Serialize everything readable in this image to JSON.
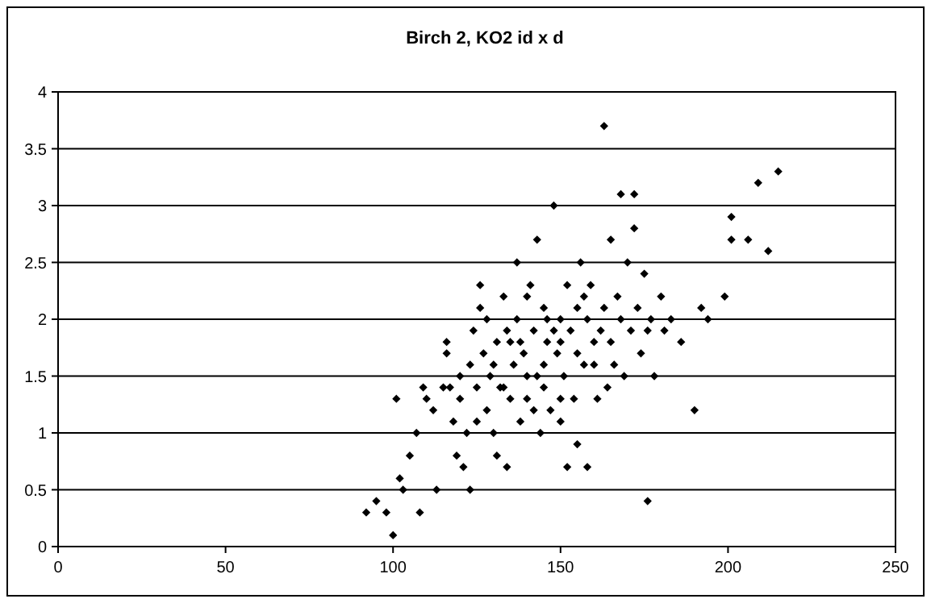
{
  "chart_data": {
    "type": "scatter",
    "title": "Birch 2, KO2 id x d",
    "xlim": [
      0,
      250
    ],
    "xticks": [
      0,
      50,
      100,
      150,
      200,
      250
    ],
    "ylim": [
      0,
      4
    ],
    "yticks": [
      0,
      0.5,
      1,
      1.5,
      2,
      2.5,
      3,
      3.5,
      4
    ],
    "grid": "y",
    "marker": "diamond",
    "series": [
      {
        "color": "#000000",
        "x": [
          92,
          95,
          98,
          100,
          102,
          103,
          105,
          107,
          108,
          110,
          101,
          109,
          112,
          113,
          115,
          116,
          116,
          117,
          118,
          119,
          120,
          121,
          122,
          123,
          123,
          124,
          125,
          126,
          126,
          127,
          128,
          128,
          129,
          130,
          131,
          131,
          132,
          133,
          134,
          134,
          135,
          136,
          137,
          137,
          138,
          139,
          140,
          140,
          141,
          142,
          143,
          143,
          144,
          145,
          145,
          146,
          147,
          148,
          148,
          149,
          150,
          150,
          151,
          152,
          152,
          153,
          154,
          155,
          155,
          156,
          157,
          157,
          158,
          158,
          159,
          160,
          161,
          162,
          163,
          163,
          164,
          165,
          165,
          166,
          167,
          168,
          168,
          169,
          170,
          171,
          172,
          172,
          173,
          174,
          175,
          176,
          176,
          177,
          178,
          180,
          181,
          183,
          186,
          190,
          192,
          194,
          199,
          201,
          201,
          206,
          209,
          212,
          215,
          120,
          125,
          130,
          135,
          140,
          145,
          150,
          155,
          160,
          150,
          146,
          142,
          138,
          133
        ],
        "values": [
          0.3,
          0.4,
          0.3,
          0.1,
          0.6,
          0.5,
          0.8,
          1.0,
          0.3,
          1.3,
          1.3,
          1.4,
          1.2,
          0.5,
          1.4,
          1.7,
          1.8,
          1.4,
          1.1,
          0.8,
          1.5,
          0.7,
          1.0,
          0.5,
          1.6,
          1.9,
          1.4,
          2.3,
          2.1,
          1.7,
          1.2,
          2.0,
          1.5,
          1.0,
          0.8,
          1.8,
          1.4,
          2.2,
          1.9,
          0.7,
          1.3,
          1.6,
          2.5,
          2.0,
          1.1,
          1.7,
          1.3,
          2.2,
          2.3,
          1.9,
          1.5,
          2.7,
          1.0,
          1.6,
          2.1,
          1.8,
          1.2,
          3.0,
          1.9,
          1.7,
          1.1,
          2.0,
          1.5,
          2.3,
          0.7,
          1.9,
          1.3,
          0.9,
          1.7,
          2.5,
          2.2,
          1.6,
          2.0,
          0.7,
          2.3,
          1.8,
          1.3,
          1.9,
          3.7,
          2.1,
          1.4,
          2.7,
          1.8,
          1.6,
          2.2,
          3.1,
          2.0,
          1.5,
          2.5,
          1.9,
          3.1,
          2.8,
          2.1,
          1.7,
          2.4,
          0.4,
          1.9,
          2.0,
          1.5,
          2.2,
          1.9,
          2.0,
          1.8,
          1.2,
          2.1,
          2.0,
          2.2,
          2.9,
          2.7,
          2.7,
          3.2,
          2.6,
          3.3,
          1.3,
          1.1,
          1.6,
          1.8,
          1.5,
          1.4,
          1.8,
          2.1,
          1.6,
          1.3,
          2.0,
          1.2,
          1.8,
          1.4
        ]
      }
    ]
  }
}
